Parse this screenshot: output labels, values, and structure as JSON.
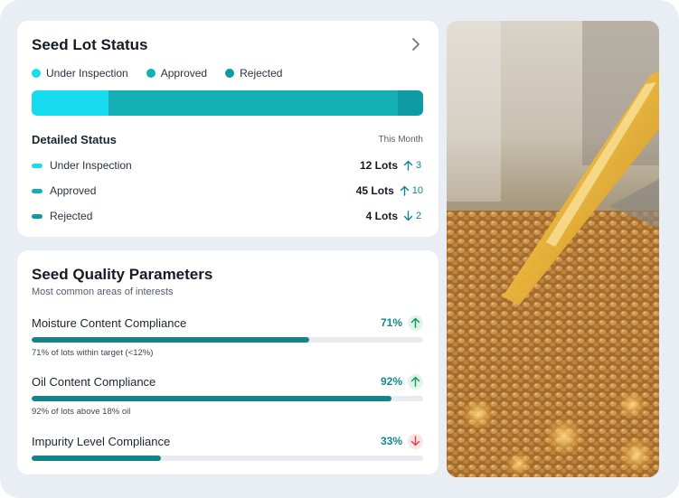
{
  "status_card": {
    "title": "Seed Lot Status",
    "legend": [
      {
        "label": "Under Inspection",
        "color": "#17dcef"
      },
      {
        "label": "Approved",
        "color": "#12b0b6"
      },
      {
        "label": "Rejected",
        "color": "#0d9aa2"
      }
    ],
    "stack": [
      {
        "name": "Under Inspection",
        "value": 12,
        "color": "#17dcef"
      },
      {
        "name": "Approved",
        "value": 45,
        "color": "#14aeb5"
      },
      {
        "name": "Rejected",
        "value": 4,
        "color": "#0e9ba4"
      }
    ],
    "detail_title": "Detailed Status",
    "period": "This Month",
    "rows": [
      {
        "label": "Under Inspection",
        "count": "12 Lots",
        "change": "3",
        "direction": "up",
        "color": "#17dcef"
      },
      {
        "label": "Approved",
        "count": "45 Lots",
        "change": "10",
        "direction": "up",
        "color": "#12b0b6"
      },
      {
        "label": "Rejected",
        "count": "4 Lots",
        "change": "2",
        "direction": "down",
        "color": "#0d9aa2"
      }
    ]
  },
  "quality_card": {
    "title": "Seed Quality Parameters",
    "subtitle": "Most common areas of interests",
    "params": [
      {
        "label": "Moisture Content Compliance",
        "pct": "71%",
        "value": 71,
        "note": "71% of lots within target (<12%)",
        "direction": "up"
      },
      {
        "label": "Oil Content Compliance",
        "pct": "92%",
        "value": 92,
        "note": "92% of lots above 18% oil",
        "direction": "up"
      },
      {
        "label": "Impurity Level Compliance",
        "pct": "33%",
        "value": 33,
        "note": "",
        "direction": "down"
      }
    ]
  },
  "colors": {
    "accent": "#13838c",
    "up_bg": "#dff5ea",
    "up_fg": "#1a9a5c",
    "down_bg": "#fde4e4",
    "down_fg": "#d9474c"
  },
  "icons": {
    "chevron": "chevron-right-icon",
    "arrow_up": "arrow-up-icon",
    "arrow_down": "arrow-down-icon"
  }
}
